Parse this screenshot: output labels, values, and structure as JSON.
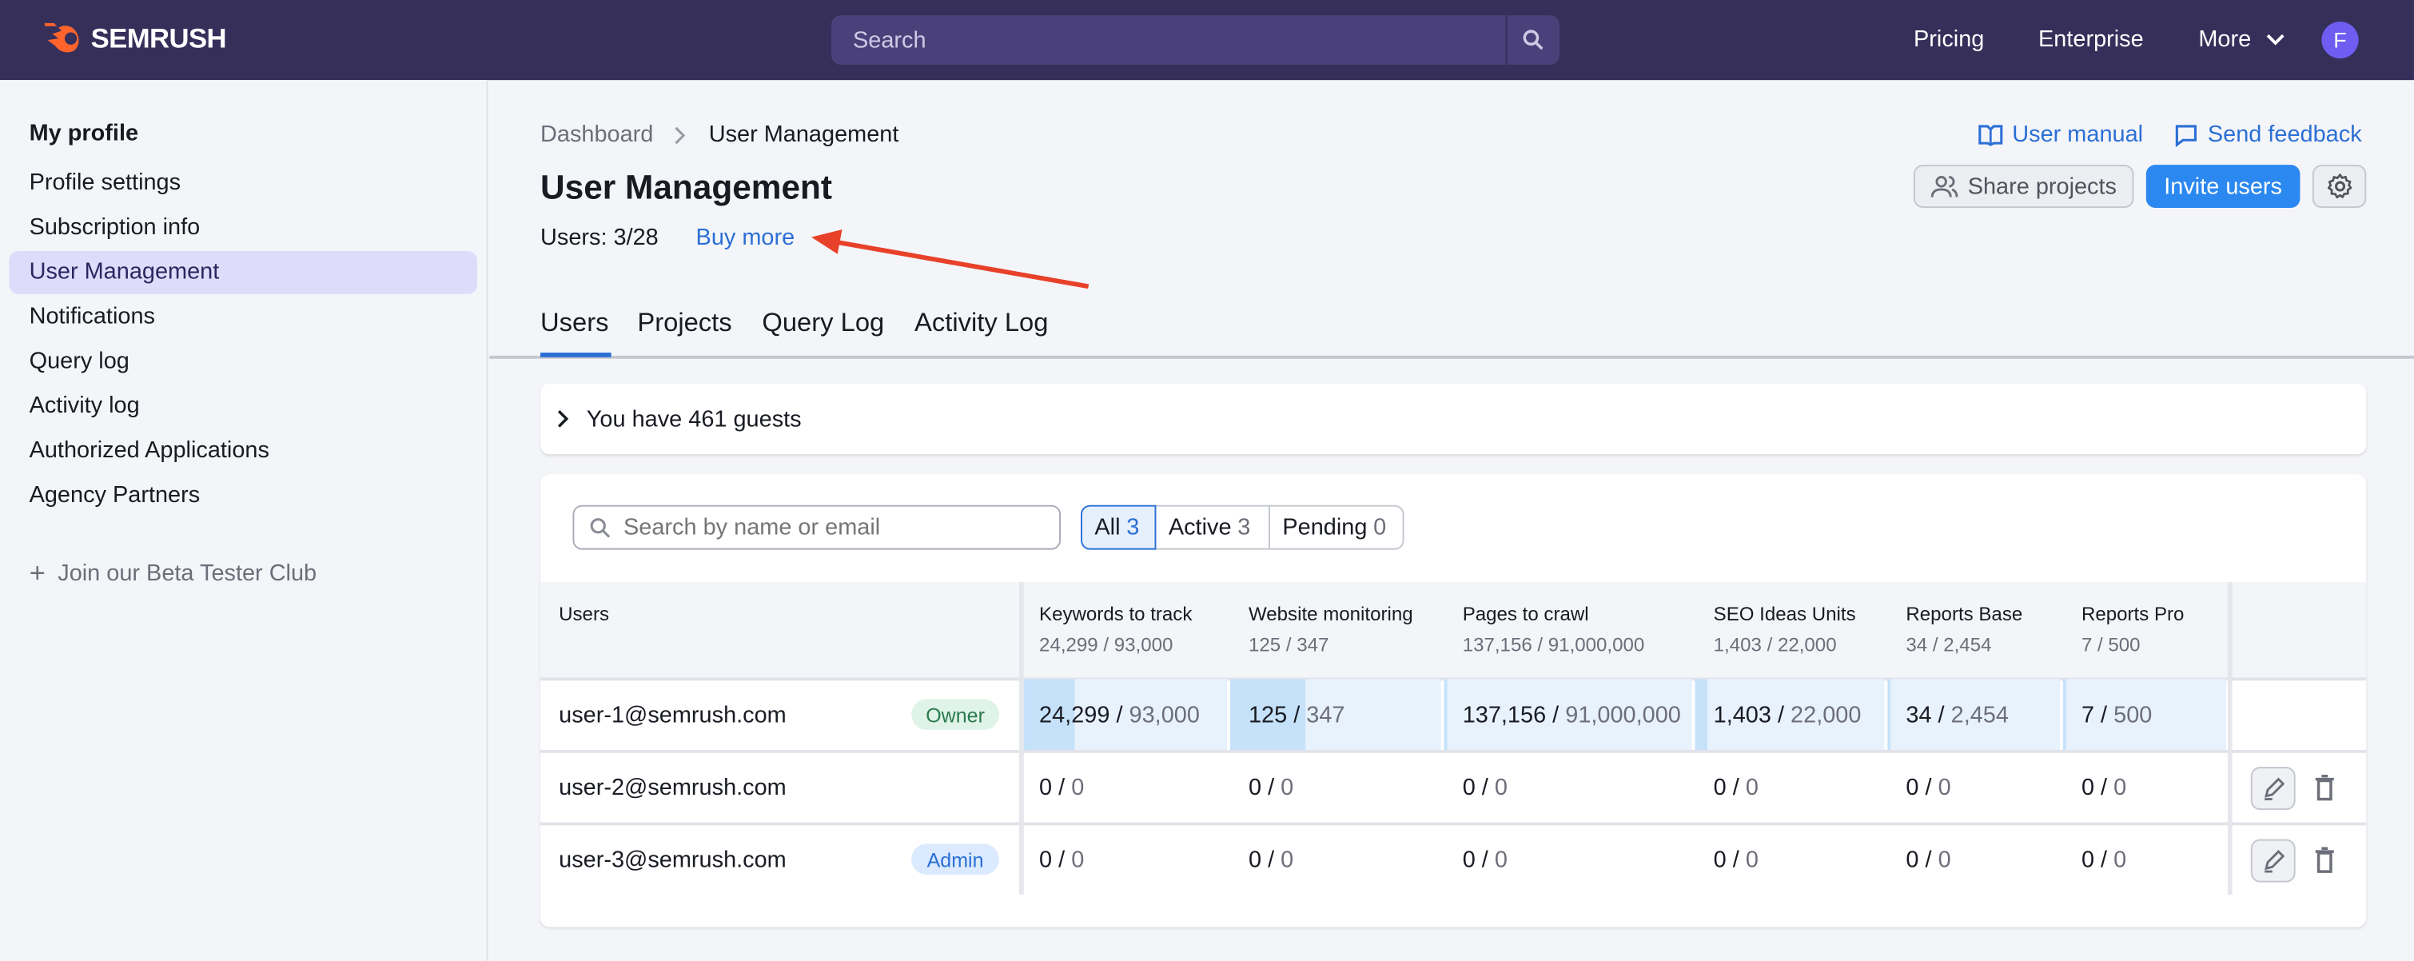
{
  "header": {
    "brand": "SEMRUSH",
    "search_placeholder": "Search",
    "nav": [
      "Pricing",
      "Enterprise",
      "More"
    ],
    "avatar_letter": "F"
  },
  "sidebar": {
    "title": "My profile",
    "items": [
      {
        "label": "Profile settings"
      },
      {
        "label": "Subscription info"
      },
      {
        "label": "User Management",
        "selected": true
      },
      {
        "label": "Notifications"
      },
      {
        "label": "Query log"
      },
      {
        "label": "Activity log"
      },
      {
        "label": "Authorized Applications"
      },
      {
        "label": "Agency Partners"
      }
    ],
    "beta": "Join our Beta Tester Club"
  },
  "breadcrumb": [
    "Dashboard",
    "User Management"
  ],
  "page": {
    "title": "User Management",
    "users_count": "Users: 3/28",
    "buy_more": "Buy more",
    "user_manual": "User manual",
    "send_feedback": "Send feedback",
    "share_projects": "Share projects",
    "invite_users": "Invite users"
  },
  "tabs": [
    {
      "label": "Users",
      "active": true
    },
    {
      "label": "Projects"
    },
    {
      "label": "Query Log"
    },
    {
      "label": "Activity Log"
    }
  ],
  "guests": "You have 461 guests",
  "filters": {
    "search_placeholder": "Search by name or email",
    "segments": [
      {
        "label": "All",
        "count": "3",
        "selected": true
      },
      {
        "label": "Active",
        "count": "3"
      },
      {
        "label": "Pending",
        "count": "0"
      }
    ]
  },
  "table": {
    "users_header": "Users",
    "columns": [
      {
        "title": "Keywords to track",
        "summary": "24,299 / 93,000"
      },
      {
        "title": "Website monitoring",
        "summary": "125 / 347"
      },
      {
        "title": "Pages to crawl",
        "summary": "137,156 / 91,000,000"
      },
      {
        "title": "SEO Ideas Units",
        "summary": "1,403 / 22,000"
      },
      {
        "title": "Reports Base",
        "summary": "34 / 2,454"
      },
      {
        "title": "Reports Pro",
        "summary": "7 / 500"
      }
    ],
    "rows": [
      {
        "email": "user-1@semrush.com",
        "badge": "Owner",
        "cells": [
          {
            "used": "24,299",
            "total": "93,000",
            "pct": 26.1
          },
          {
            "used": "125",
            "total": "347",
            "pct": 36
          },
          {
            "used": "137,156",
            "total": "91,000,000",
            "pct": 0.15
          },
          {
            "used": "1,403",
            "total": "22,000",
            "pct": 6.4
          },
          {
            "used": "34",
            "total": "2,454",
            "pct": 1.4
          },
          {
            "used": "7",
            "total": "500",
            "pct": 1.4
          }
        ]
      },
      {
        "email": "user-2@semrush.com",
        "badge": "",
        "cells": [
          {
            "used": "0",
            "total": "0",
            "pct": 0
          },
          {
            "used": "0",
            "total": "0",
            "pct": 0
          },
          {
            "used": "0",
            "total": "0",
            "pct": 0
          },
          {
            "used": "0",
            "total": "0",
            "pct": 0
          },
          {
            "used": "0",
            "total": "0",
            "pct": 0
          },
          {
            "used": "0",
            "total": "0",
            "pct": 0
          }
        ]
      },
      {
        "email": "user-3@semrush.com",
        "badge": "Admin",
        "cells": [
          {
            "used": "0",
            "total": "0",
            "pct": 0
          },
          {
            "used": "0",
            "total": "0",
            "pct": 0
          },
          {
            "used": "0",
            "total": "0",
            "pct": 0
          },
          {
            "used": "0",
            "total": "0",
            "pct": 0
          },
          {
            "used": "0",
            "total": "0",
            "pct": 0
          },
          {
            "used": "0",
            "total": "0",
            "pct": 0
          }
        ]
      }
    ]
  },
  "colors": {
    "header_bg": "#352f5a",
    "accent": "#2b88f0",
    "link": "#2b6fd6",
    "annotation_arrow": "#e8412a",
    "owner_badge": "#dff3e8",
    "admin_badge": "#dbeafe"
  }
}
